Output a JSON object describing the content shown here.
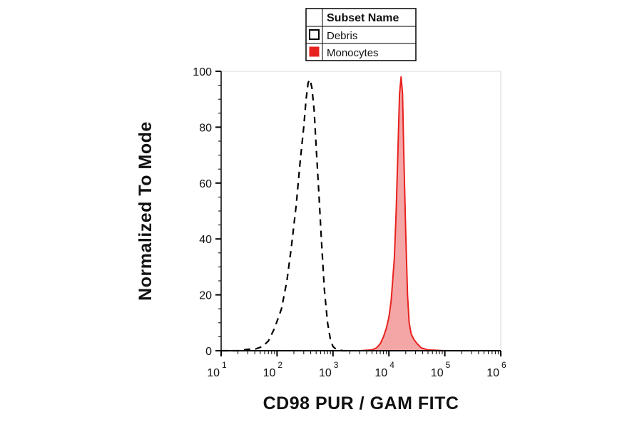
{
  "chart_data": {
    "type": "area",
    "title": "",
    "xlabel": "CD98 PUR / GAM FITC",
    "ylabel": "Normalized To Mode",
    "xscale": "log",
    "xlim": [
      10,
      1000000
    ],
    "ylim": [
      0,
      100
    ],
    "x_ticks": [
      {
        "base": "10",
        "exp": "1",
        "value": 10
      },
      {
        "base": "10",
        "exp": "2",
        "value": 100
      },
      {
        "base": "10",
        "exp": "3",
        "value": 1000
      },
      {
        "base": "10",
        "exp": "4",
        "value": 10000
      },
      {
        "base": "10",
        "exp": "5",
        "value": 100000
      },
      {
        "base": "10",
        "exp": "6",
        "value": 1000000
      }
    ],
    "y_ticks": [
      "0",
      "20",
      "40",
      "60",
      "80",
      "100"
    ],
    "legend": {
      "title": "Subset Name",
      "placement": "top-center",
      "entries": [
        {
          "name": "Debris",
          "style": "open-box"
        },
        {
          "name": "Monocytes",
          "style": "filled-red"
        }
      ]
    },
    "series": [
      {
        "name": "Debris",
        "style": "dashed",
        "color": "#000000",
        "x": [
          10,
          20,
          30,
          40,
          55,
          70,
          90,
          120,
          150,
          180,
          220,
          260,
          300,
          330,
          360,
          390,
          420,
          460,
          500,
          560,
          620,
          700,
          800,
          900,
          1000,
          1100,
          1250,
          1500,
          2000
        ],
        "y": [
          0,
          0,
          0.5,
          0.5,
          1.5,
          3.5,
          8,
          15,
          25,
          37,
          52,
          68,
          80,
          90,
          96,
          97,
          94,
          86,
          73,
          56,
          40,
          22,
          10,
          4,
          1.5,
          0.8,
          0.3,
          0,
          0
        ]
      },
      {
        "name": "Monocytes",
        "style": "filled",
        "color": "#e8221f",
        "fill": "#f4a6a6",
        "x": [
          10,
          1000,
          3000,
          5000,
          6000,
          7000,
          8000,
          9000,
          10000,
          11000,
          12500,
          13500,
          14500,
          15500,
          16500,
          17500,
          18500,
          20000,
          21500,
          23000,
          25000,
          28000,
          32000,
          38000,
          50000,
          100000,
          1000000
        ],
        "y": [
          0,
          0,
          0,
          0.3,
          1,
          2.5,
          5,
          8,
          12,
          18,
          33,
          50,
          72,
          92,
          98,
          92,
          70,
          42,
          20,
          10,
          6,
          4,
          2.5,
          1,
          0.3,
          0,
          0
        ]
      }
    ]
  }
}
